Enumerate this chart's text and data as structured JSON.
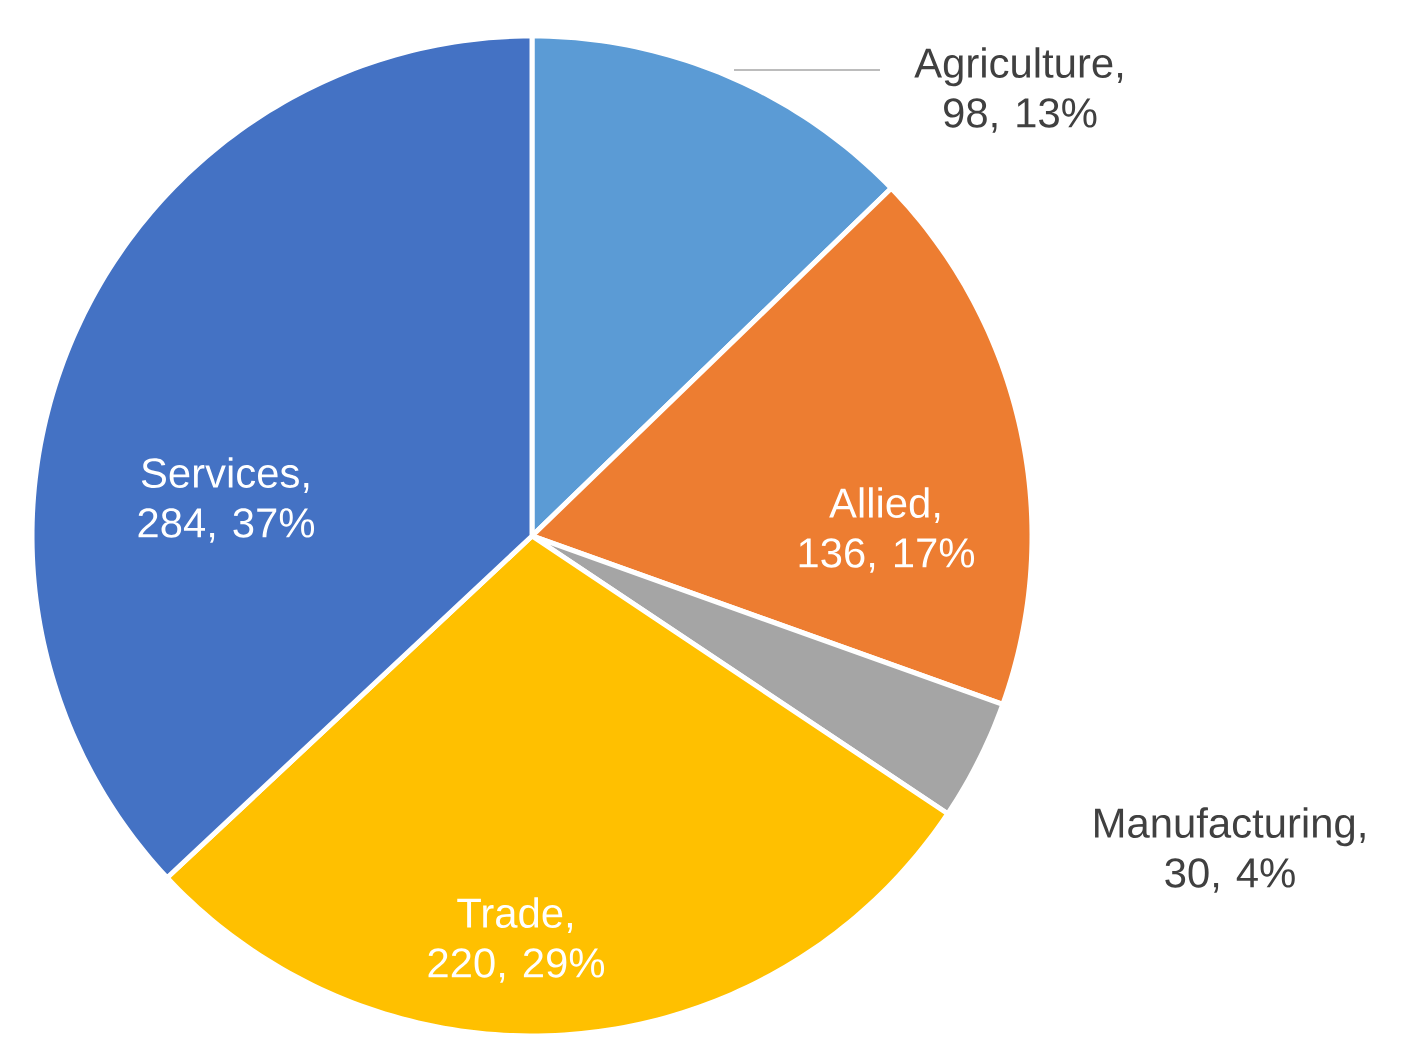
{
  "chart_data": {
    "type": "pie",
    "categories": [
      "Agriculture",
      "Allied",
      "Manufacturing",
      "Trade",
      "Services"
    ],
    "values": [
      98,
      136,
      30,
      220,
      284
    ],
    "value_labels": [
      ", 98, 13%",
      ", 136, 17%",
      ", 30, 4%",
      ", 220, 29%",
      ", 284, 37%"
    ],
    "colors": [
      "#5b9bd5",
      "#ed7d31",
      "#a5a5a5",
      "#ffc000",
      "#4472c4"
    ]
  }
}
